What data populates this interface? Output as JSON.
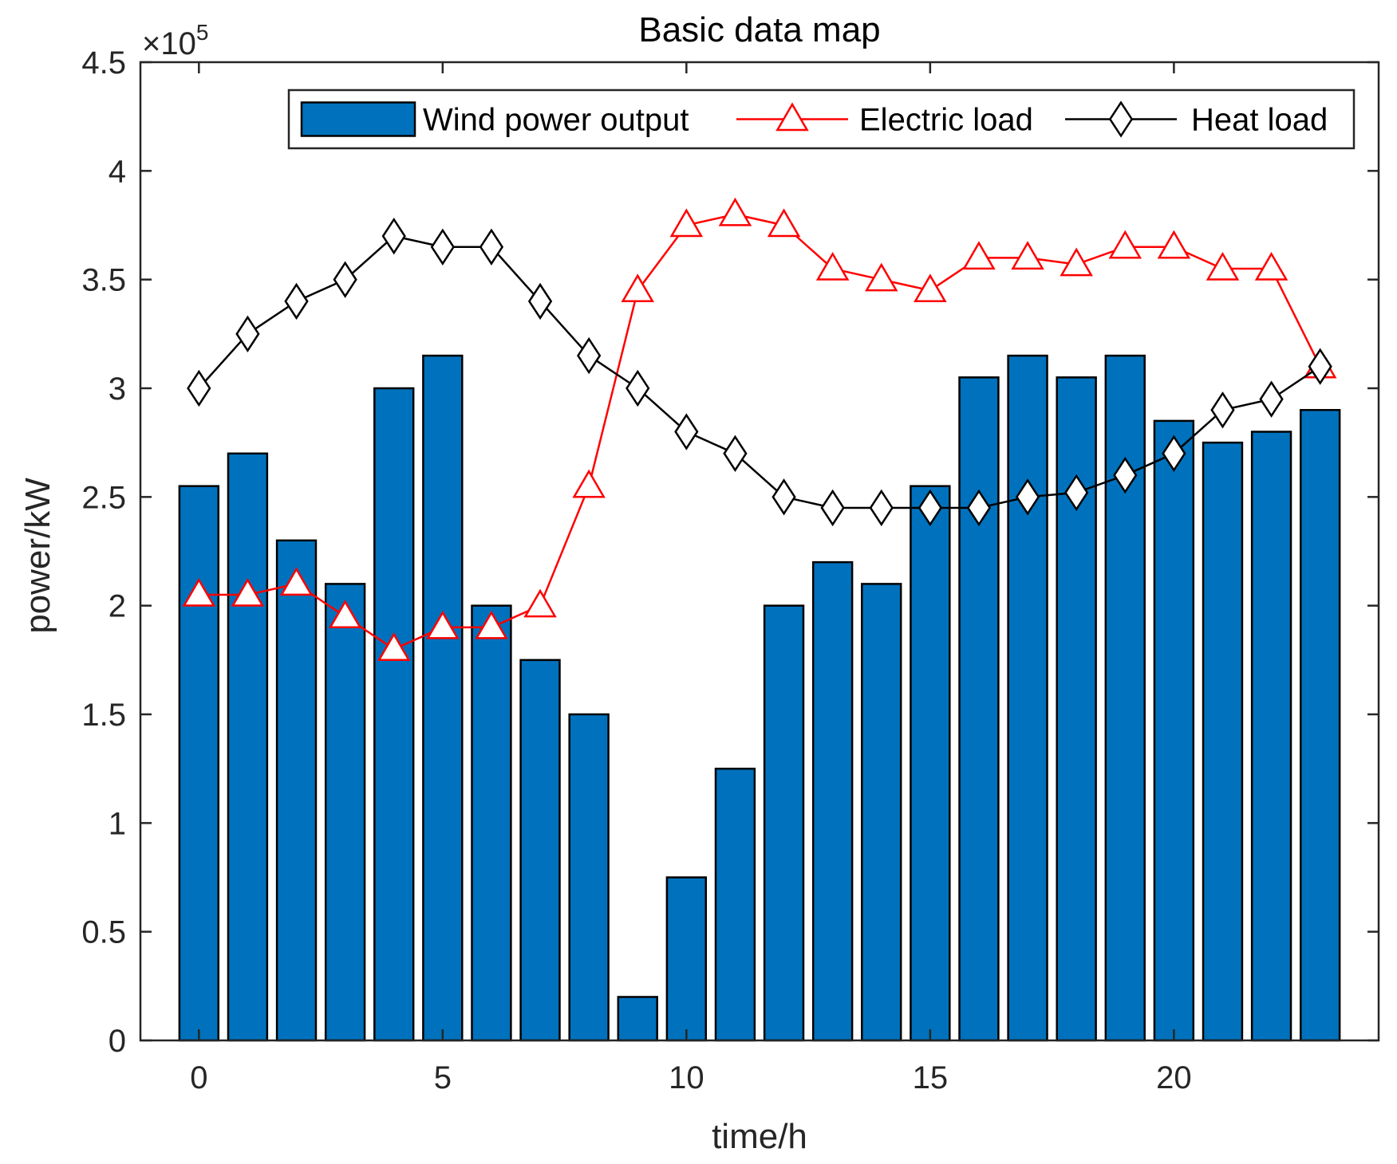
{
  "chart_data": {
    "type": "bar",
    "title": "Basic data map",
    "xlabel": "time/h",
    "ylabel": "power/kW",
    "y_multiplier_base": "×10",
    "y_multiplier_exp": "5",
    "xlim": [
      -1.2,
      24.2
    ],
    "ylim": [
      0,
      4.5
    ],
    "xticks": [
      0,
      5,
      10,
      15,
      20
    ],
    "xtick_labels": [
      "0",
      "5",
      "10",
      "15",
      "20"
    ],
    "yticks": [
      0,
      0.5,
      1,
      1.5,
      2,
      2.5,
      3,
      3.5,
      4,
      4.5
    ],
    "ytick_labels": [
      "0",
      "0.5",
      "1",
      "1.5",
      "2",
      "2.5",
      "3",
      "3.5",
      "4",
      "4.5"
    ],
    "x": [
      0,
      1,
      2,
      3,
      4,
      5,
      6,
      7,
      8,
      9,
      10,
      11,
      12,
      13,
      14,
      15,
      16,
      17,
      18,
      19,
      20,
      21,
      22,
      23
    ],
    "series": [
      {
        "name": "Wind power output",
        "kind": "bar",
        "color": "#0072BD",
        "values": [
          2.55,
          2.7,
          2.3,
          2.1,
          3.0,
          3.15,
          2.0,
          1.75,
          1.5,
          0.2,
          0.75,
          1.25,
          2.0,
          2.2,
          2.1,
          2.55,
          3.05,
          3.15,
          3.05,
          3.15,
          2.85,
          2.75,
          2.8,
          2.9
        ]
      },
      {
        "name": "Electric load",
        "kind": "line",
        "marker": "triangle",
        "color": "#FF0000",
        "values": [
          2.05,
          2.05,
          2.1,
          1.95,
          1.8,
          1.9,
          1.9,
          2.0,
          2.55,
          3.45,
          3.75,
          3.8,
          3.75,
          3.55,
          3.5,
          3.45,
          3.6,
          3.6,
          3.57,
          3.65,
          3.65,
          3.55,
          3.55,
          3.1
        ]
      },
      {
        "name": "Heat load",
        "kind": "line",
        "marker": "diamond",
        "color": "#000000",
        "values": [
          3.0,
          3.25,
          3.4,
          3.5,
          3.7,
          3.65,
          3.65,
          3.4,
          3.15,
          3.0,
          2.8,
          2.7,
          2.5,
          2.45,
          2.45,
          2.45,
          2.45,
          2.5,
          2.52,
          2.6,
          2.7,
          2.9,
          2.95,
          3.1
        ]
      }
    ],
    "legend_position": "top-right"
  }
}
